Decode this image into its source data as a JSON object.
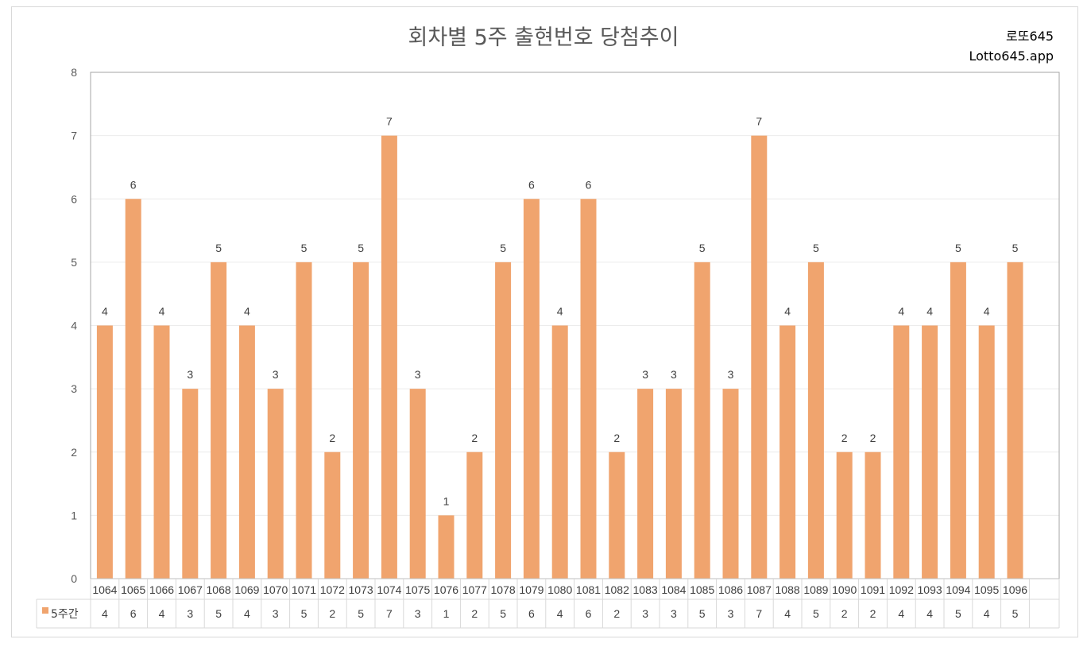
{
  "brand": {
    "line1": "로또645",
    "line2": "Lotto645.app"
  },
  "chart_data": {
    "type": "bar",
    "title": "회차별 5주 출현번호 당첨추이",
    "xlabel": "",
    "ylabel": "",
    "ylim": [
      0,
      8
    ],
    "yticks": [
      0,
      1,
      2,
      3,
      4,
      5,
      6,
      7,
      8
    ],
    "grid": true,
    "data_table": true,
    "categories": [
      "1064",
      "1065",
      "1066",
      "1067",
      "1068",
      "1069",
      "1070",
      "1071",
      "1072",
      "1073",
      "1074",
      "1075",
      "1076",
      "1077",
      "1078",
      "1079",
      "1080",
      "1081",
      "1082",
      "1083",
      "1084",
      "1085",
      "1086",
      "1087",
      "1088",
      "1089",
      "1090",
      "1091",
      "1092",
      "1093",
      "1094",
      "1095",
      "1096"
    ],
    "series": [
      {
        "name": "5주간",
        "color": "#F0A46E",
        "values": [
          4,
          6,
          4,
          3,
          5,
          4,
          3,
          5,
          2,
          5,
          7,
          3,
          1,
          2,
          5,
          6,
          4,
          6,
          2,
          3,
          3,
          5,
          3,
          7,
          4,
          5,
          2,
          2,
          4,
          4,
          5,
          4,
          5
        ]
      }
    ]
  }
}
